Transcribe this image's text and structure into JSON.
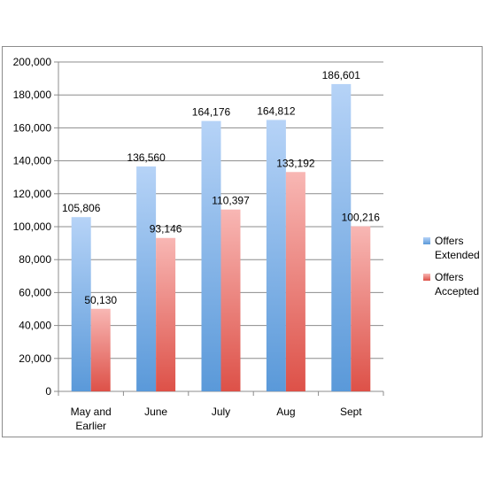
{
  "chart_data": {
    "type": "bar",
    "categories": [
      [
        "May and",
        "Earlier"
      ],
      [
        "June"
      ],
      [
        "July"
      ],
      [
        "Aug"
      ],
      [
        "Sept"
      ]
    ],
    "series": [
      {
        "name": [
          "Offers",
          "Extended"
        ],
        "values": [
          105806,
          136560,
          164176,
          164812,
          186601
        ],
        "labels": [
          "105,806",
          "136,560",
          "164,176",
          "164,812",
          "186,601"
        ],
        "color_top": "#b6d3f7",
        "color_bottom": "#5a99d9"
      },
      {
        "name": [
          "Offers",
          "Accepted"
        ],
        "values": [
          50130,
          93146,
          110397,
          133192,
          100216
        ],
        "labels": [
          "50,130",
          "93,146",
          "110,397",
          "133,192",
          "100,216"
        ],
        "color_top": "#f8b7b4",
        "color_bottom": "#dd5148"
      }
    ],
    "y_ticks": [
      "0",
      "20,000",
      "40,000",
      "60,000",
      "80,000",
      "100,000",
      "120,000",
      "140,000",
      "160,000",
      "180,000",
      "200,000"
    ],
    "ylim": [
      0,
      200000
    ],
    "grid": true,
    "legend_position": "right"
  }
}
